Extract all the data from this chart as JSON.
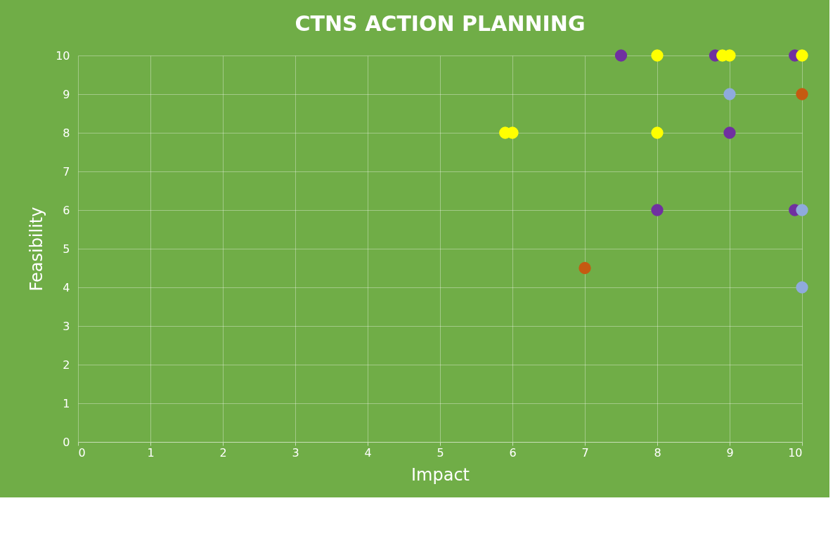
{
  "chart_data": {
    "type": "scatter",
    "title": "CTNS ACTION PLANNING",
    "xlabel": "Impact",
    "ylabel": "Feasibility",
    "xlim": [
      0,
      10
    ],
    "xticks": [
      0,
      1,
      2,
      3,
      4,
      5,
      6,
      7,
      8,
      9,
      10
    ],
    "ylim": [
      0,
      10
    ],
    "yticks": [
      0,
      1,
      2,
      3,
      4,
      5,
      6,
      7,
      8,
      9,
      10
    ],
    "grid": true,
    "marker": "circle",
    "series": [
      {
        "color": "#7030a0",
        "x": [
          7.5,
          8.8,
          9.9,
          9,
          8,
          9.9
        ],
        "values": [
          10,
          10,
          10,
          8,
          6,
          6
        ]
      },
      {
        "color": "#c55a11",
        "x": [
          10,
          7
        ],
        "values": [
          9,
          4.5
        ]
      },
      {
        "color": "#8faadc",
        "x": [
          9,
          10,
          10
        ],
        "values": [
          9,
          6,
          4
        ]
      },
      {
        "color": "#ffff00",
        "x": [
          8,
          8.9,
          9,
          10,
          5.9,
          6,
          8
        ],
        "values": [
          10,
          10,
          10,
          10,
          8,
          8,
          8
        ]
      }
    ]
  }
}
